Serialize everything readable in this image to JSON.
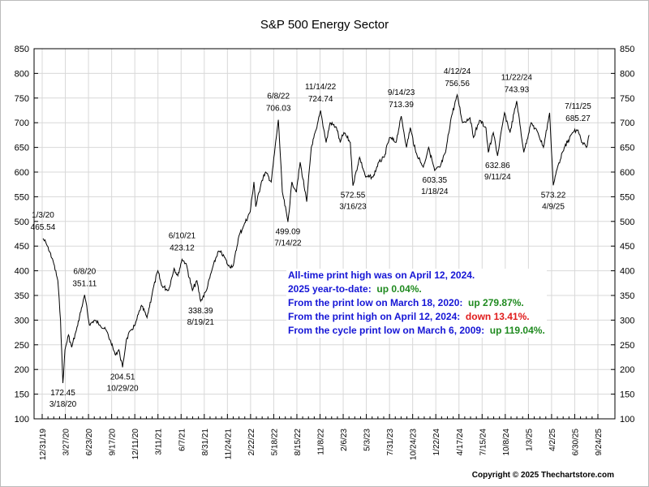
{
  "chart_data": {
    "type": "line",
    "title": "S&P 500 Energy Sector",
    "xlabel": "",
    "ylabel": "",
    "ylim": [
      100,
      850
    ],
    "yticks": [
      100,
      150,
      200,
      250,
      300,
      350,
      400,
      450,
      500,
      550,
      600,
      650,
      700,
      750,
      800,
      850
    ],
    "xticks": [
      "12/31/19",
      "3/27/20",
      "6/23/20",
      "9/17/20",
      "12/11/20",
      "3/11/21",
      "6/7/21",
      "8/31/21",
      "11/24/21",
      "2/22/22",
      "5/18/22",
      "8/15/22",
      "11/8/22",
      "2/6/23",
      "5/3/23",
      "7/31/23",
      "10/24/23",
      "1/22/24",
      "4/17/24",
      "7/15/24",
      "10/8/24",
      "1/3/25",
      "4/2/25",
      "6/30/25",
      "9/24/25"
    ],
    "xlim": [
      "2019-12-31",
      "2025-09-24"
    ],
    "grid": true,
    "axes": "both-sides",
    "line_color": "#000000",
    "series": [
      {
        "points": [
          [
            "2020-01-03",
            465.54
          ],
          [
            "2020-01-20",
            450
          ],
          [
            "2020-02-10",
            420
          ],
          [
            "2020-02-28",
            380
          ],
          [
            "2020-03-09",
            300
          ],
          [
            "2020-03-18",
            172.45
          ],
          [
            "2020-03-26",
            240
          ],
          [
            "2020-04-08",
            270
          ],
          [
            "2020-04-20",
            245
          ],
          [
            "2020-05-08",
            280
          ],
          [
            "2020-06-08",
            351.11
          ],
          [
            "2020-06-26",
            290
          ],
          [
            "2020-07-15",
            300
          ],
          [
            "2020-08-05",
            290
          ],
          [
            "2020-08-28",
            280
          ],
          [
            "2020-09-15",
            255
          ],
          [
            "2020-10-01",
            230
          ],
          [
            "2020-10-15",
            240
          ],
          [
            "2020-10-29",
            204.51
          ],
          [
            "2020-11-12",
            260
          ],
          [
            "2020-11-30",
            280
          ],
          [
            "2020-12-15",
            290
          ],
          [
            "2021-01-08",
            330
          ],
          [
            "2021-01-29",
            305
          ],
          [
            "2021-02-24",
            370
          ],
          [
            "2021-03-11",
            400
          ],
          [
            "2021-03-25",
            370
          ],
          [
            "2021-04-20",
            360
          ],
          [
            "2021-05-11",
            405
          ],
          [
            "2021-05-25",
            390
          ],
          [
            "2021-06-10",
            423.12
          ],
          [
            "2021-06-25",
            415
          ],
          [
            "2021-07-19",
            360
          ],
          [
            "2021-08-05",
            380
          ],
          [
            "2021-08-19",
            338.39
          ],
          [
            "2021-09-10",
            360
          ],
          [
            "2021-10-05",
            410
          ],
          [
            "2021-10-25",
            440
          ],
          [
            "2021-11-15",
            430
          ],
          [
            "2021-12-01",
            410
          ],
          [
            "2021-12-20",
            410
          ],
          [
            "2022-01-10",
            470
          ],
          [
            "2022-01-27",
            490
          ],
          [
            "2022-02-22",
            520
          ],
          [
            "2022-03-08",
            580
          ],
          [
            "2022-03-15",
            530
          ],
          [
            "2022-04-05",
            580
          ],
          [
            "2022-04-21",
            600
          ],
          [
            "2022-05-12",
            580
          ],
          [
            "2022-06-08",
            706.03
          ],
          [
            "2022-06-23",
            560
          ],
          [
            "2022-07-14",
            499.09
          ],
          [
            "2022-07-29",
            580
          ],
          [
            "2022-08-15",
            560
          ],
          [
            "2022-08-29",
            620
          ],
          [
            "2022-09-23",
            540
          ],
          [
            "2022-10-10",
            650
          ],
          [
            "2022-10-31",
            690
          ],
          [
            "2022-11-14",
            724.74
          ],
          [
            "2022-12-05",
            660
          ],
          [
            "2022-12-20",
            700
          ],
          [
            "2023-01-13",
            690
          ],
          [
            "2023-01-27",
            660
          ],
          [
            "2023-02-10",
            680
          ],
          [
            "2023-03-06",
            660
          ],
          [
            "2023-03-16",
            572.55
          ],
          [
            "2023-04-10",
            630
          ],
          [
            "2023-05-03",
            590
          ],
          [
            "2023-05-31",
            590
          ],
          [
            "2023-06-21",
            620
          ],
          [
            "2023-07-12",
            630
          ],
          [
            "2023-08-01",
            670
          ],
          [
            "2023-08-25",
            660
          ],
          [
            "2023-09-14",
            713.39
          ],
          [
            "2023-10-04",
            650
          ],
          [
            "2023-10-18",
            690
          ],
          [
            "2023-11-08",
            640
          ],
          [
            "2023-12-06",
            610
          ],
          [
            "2023-12-26",
            650
          ],
          [
            "2024-01-18",
            603.35
          ],
          [
            "2024-02-07",
            610
          ],
          [
            "2024-02-28",
            640
          ],
          [
            "2024-03-20",
            710
          ],
          [
            "2024-04-12",
            756.56
          ],
          [
            "2024-05-02",
            700
          ],
          [
            "2024-05-30",
            710
          ],
          [
            "2024-06-12",
            670
          ],
          [
            "2024-07-05",
            705
          ],
          [
            "2024-07-29",
            690
          ],
          [
            "2024-08-07",
            640
          ],
          [
            "2024-08-26",
            680
          ],
          [
            "2024-09-11",
            632.86
          ],
          [
            "2024-10-07",
            720
          ],
          [
            "2024-10-28",
            680
          ],
          [
            "2024-11-22",
            743.93
          ],
          [
            "2024-12-19",
            640
          ],
          [
            "2025-01-15",
            700
          ],
          [
            "2025-02-10",
            680
          ],
          [
            "2025-03-03",
            650
          ],
          [
            "2025-03-26",
            720
          ],
          [
            "2025-04-09",
            573.22
          ],
          [
            "2025-04-25",
            610
          ],
          [
            "2025-05-13",
            640
          ],
          [
            "2025-06-20",
            680
          ],
          [
            "2025-07-11",
            685.27
          ],
          [
            "2025-07-25",
            660
          ],
          [
            "2025-08-12",
            650
          ],
          [
            "2025-08-22",
            675
          ]
        ]
      }
    ],
    "annotations": [
      {
        "date": "2020-01-03",
        "label": "1/3/20",
        "value": 465.54,
        "placement": "above"
      },
      {
        "date": "2020-03-18",
        "label": "3/18/20",
        "value": 172.45,
        "placement": "below"
      },
      {
        "date": "2020-06-08",
        "label": "6/8/20",
        "value": 351.11,
        "placement": "above"
      },
      {
        "date": "2020-10-29",
        "label": "10/29/20",
        "value": 204.51,
        "placement": "below"
      },
      {
        "date": "2021-06-10",
        "label": "6/10/21",
        "value": 423.12,
        "placement": "above"
      },
      {
        "date": "2021-08-19",
        "label": "8/19/21",
        "value": 338.39,
        "placement": "below"
      },
      {
        "date": "2022-06-08",
        "label": "6/8/22",
        "value": 706.03,
        "placement": "above"
      },
      {
        "date": "2022-07-14",
        "label": "7/14/22",
        "value": 499.09,
        "placement": "below"
      },
      {
        "date": "2022-11-14",
        "label": "11/14/22",
        "value": 724.74,
        "placement": "above"
      },
      {
        "date": "2023-03-16",
        "label": "3/16/23",
        "value": 572.55,
        "placement": "below"
      },
      {
        "date": "2023-09-14",
        "label": "9/14/23",
        "value": 713.39,
        "placement": "above"
      },
      {
        "date": "2024-01-18",
        "label": "1/18/24",
        "value": 603.35,
        "placement": "below"
      },
      {
        "date": "2024-04-12",
        "label": "4/12/24",
        "value": 756.56,
        "placement": "above"
      },
      {
        "date": "2024-09-11",
        "label": "9/11/24",
        "value": 632.86,
        "placement": "below"
      },
      {
        "date": "2024-11-22",
        "label": "11/22/24",
        "value": 743.93,
        "placement": "above"
      },
      {
        "date": "2025-04-09",
        "label": "4/9/25",
        "value": 573.22,
        "placement": "below"
      },
      {
        "date": "2025-07-11",
        "label": "7/11/25",
        "value": 685.27,
        "placement": "above"
      }
    ],
    "notes": [
      {
        "text": "All-time print high was on April 12, 2024.",
        "highlight": "",
        "color": ""
      },
      {
        "text": "2025 year-to-date:  ",
        "highlight": "up 0.04%.",
        "color": "green"
      },
      {
        "text": "From the print low on March 18, 2020:  ",
        "highlight": "up 279.87%.",
        "color": "green"
      },
      {
        "text": "From the print high on April 12, 2024:  ",
        "highlight": "down 13.41%.",
        "color": "red"
      },
      {
        "text": "From the cycle print low on March 6, 2009:  ",
        "highlight": "up 119.04%.",
        "color": "green"
      }
    ],
    "copyright": "Copyright © 2025 Thechartstore.com"
  }
}
